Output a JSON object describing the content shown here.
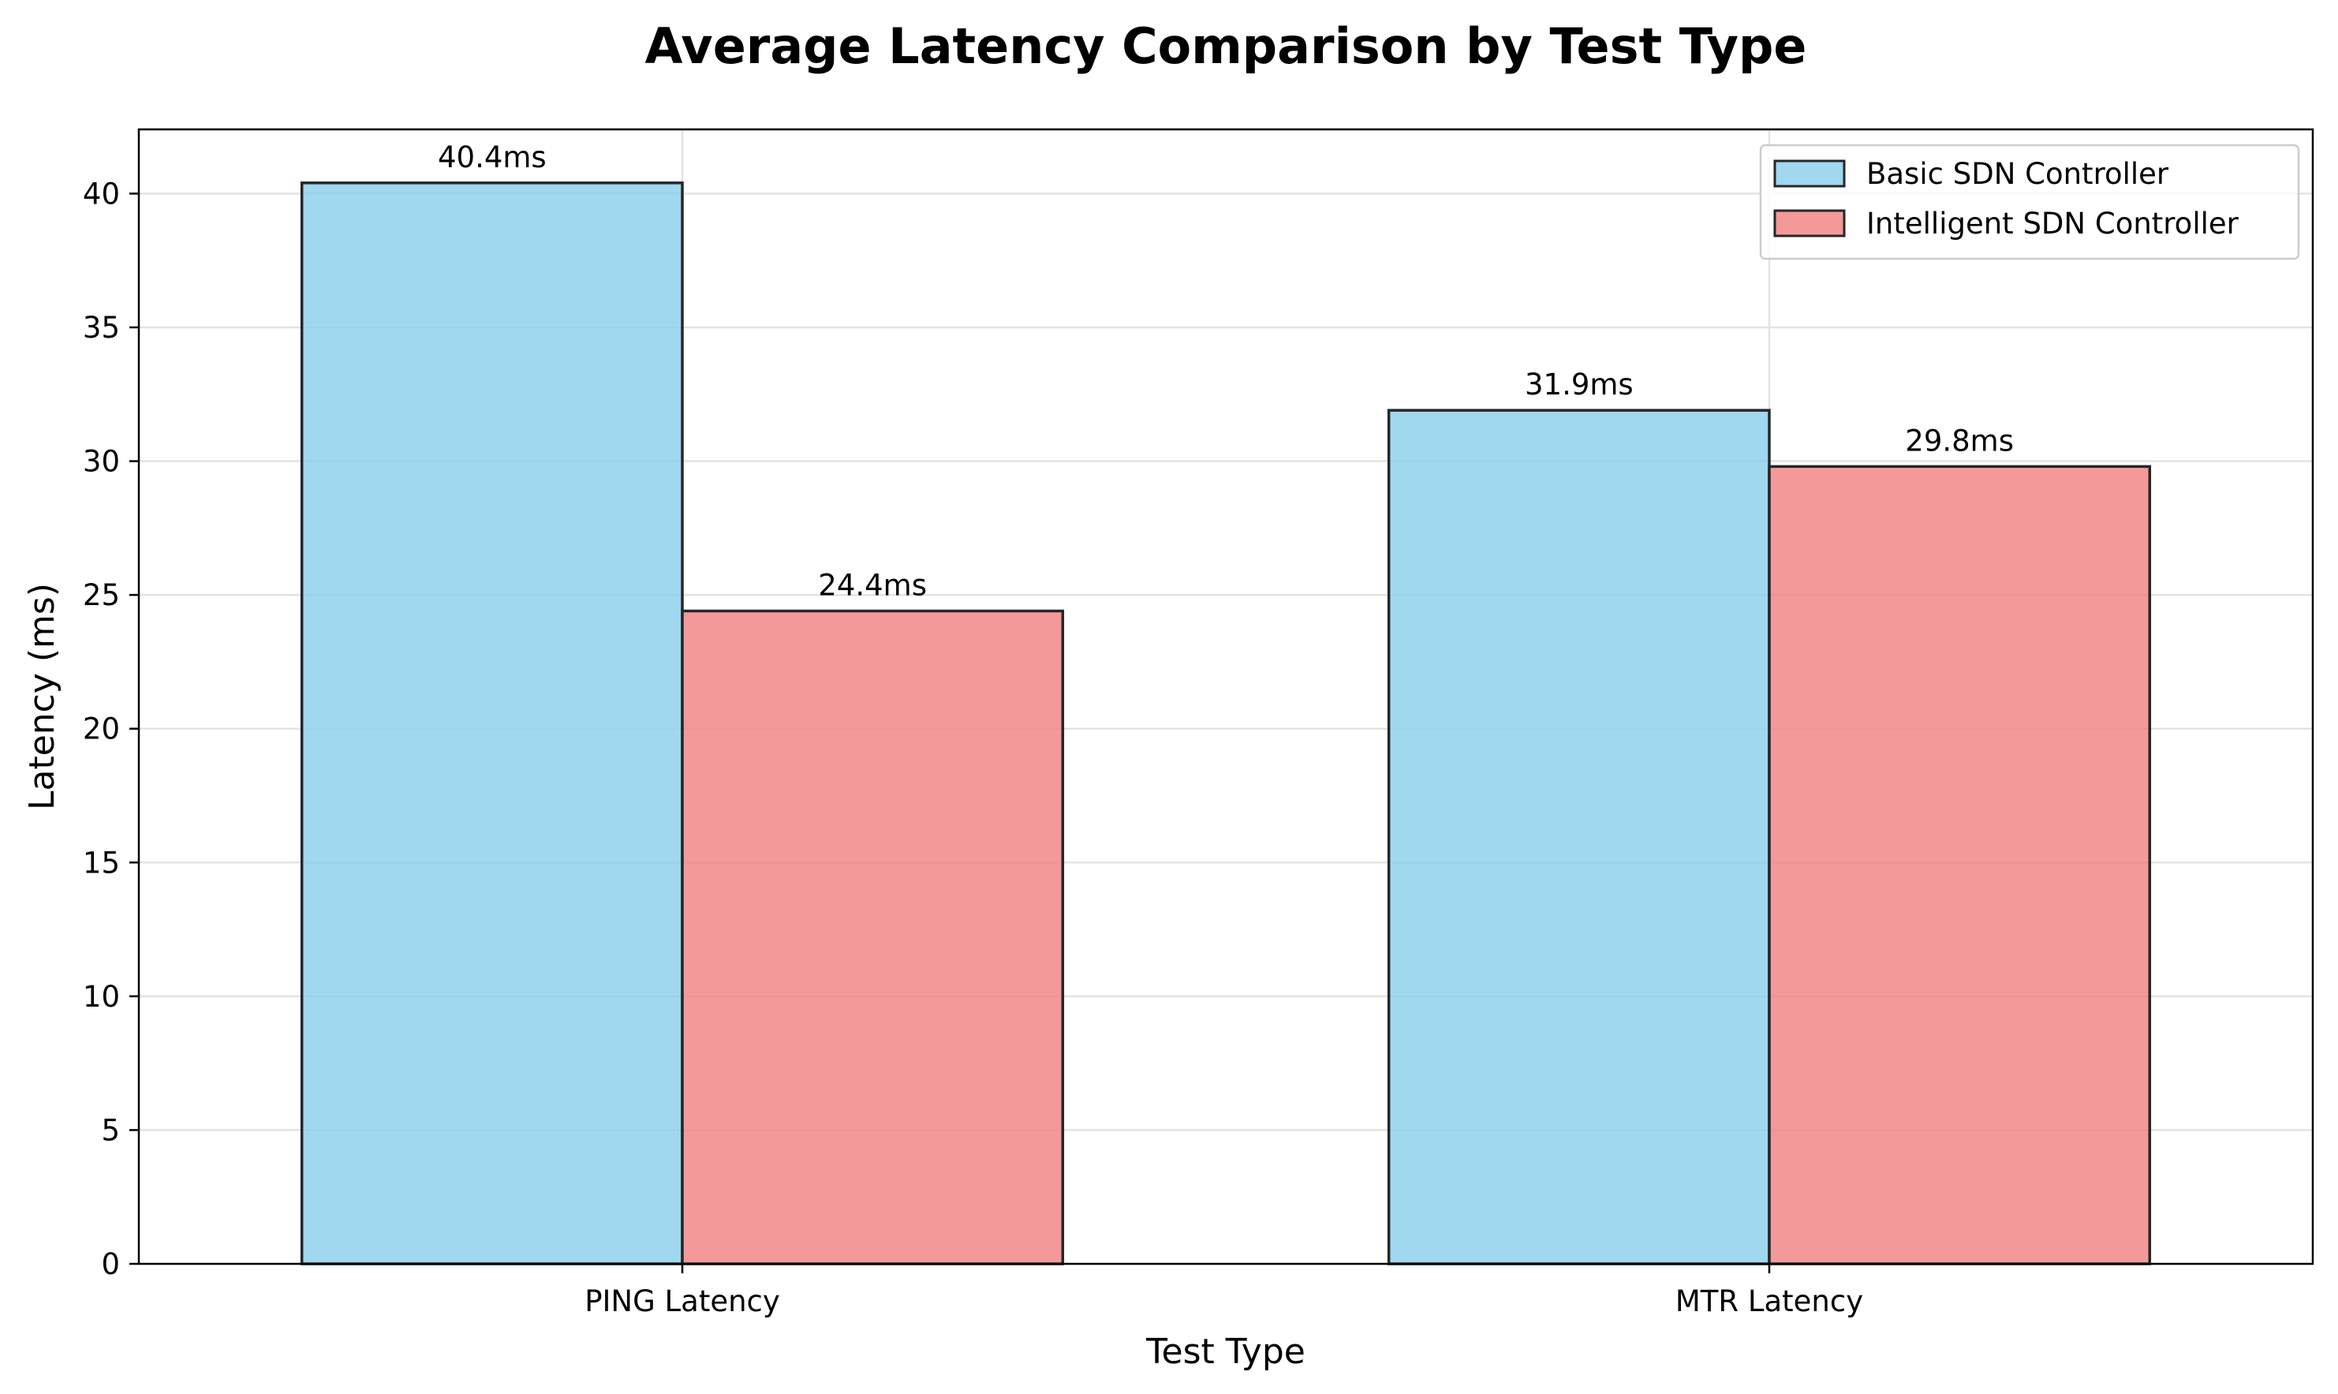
{
  "chart_data": {
    "type": "bar",
    "title": "Average Latency Comparison by Test Type",
    "xlabel": "Test Type",
    "ylabel": "Latency (ms)",
    "categories": [
      "PING Latency",
      "MTR Latency"
    ],
    "series": [
      {
        "name": "Basic SDN Controller",
        "values": [
          40.4,
          31.9
        ],
        "labels": [
          "40.4ms",
          "31.9ms"
        ],
        "color": "#87ceeb"
      },
      {
        "name": "Intelligent SDN Controller",
        "values": [
          24.4,
          29.8
        ],
        "labels": [
          "24.4ms",
          "29.8ms"
        ],
        "color": "#f08080"
      }
    ],
    "ylim": [
      0,
      42.4
    ],
    "yticks": [
      0,
      5,
      10,
      15,
      20,
      25,
      30,
      35,
      40
    ],
    "grid": true,
    "legend_position": "top-right",
    "bar_opacity": 0.8
  }
}
